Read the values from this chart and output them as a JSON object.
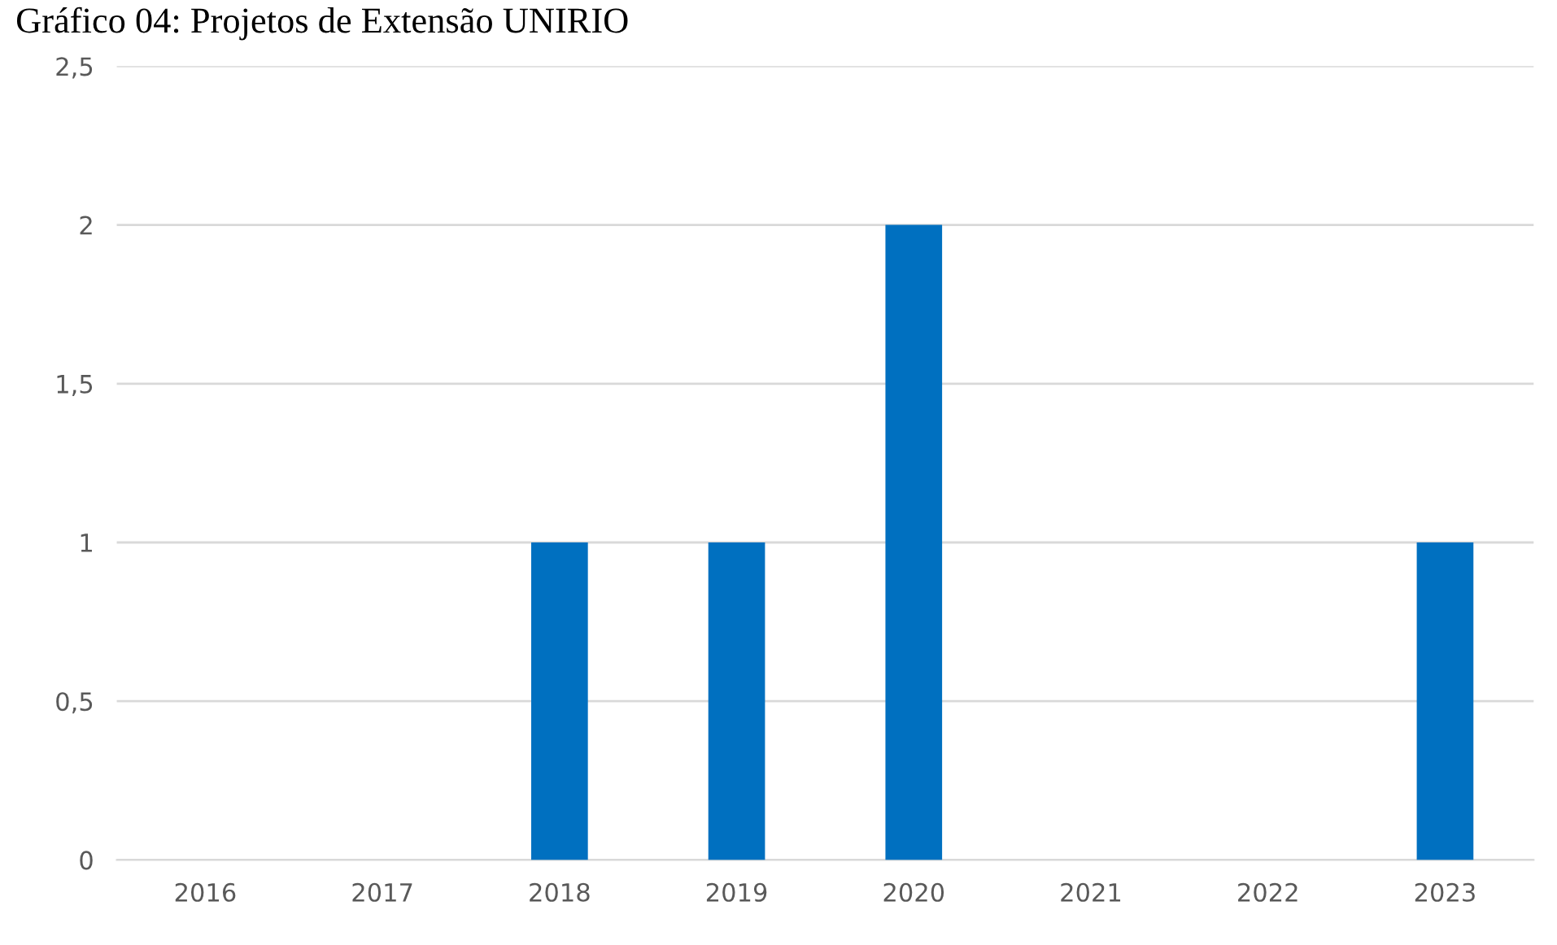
{
  "chart_data": {
    "type": "bar",
    "title": "Gráfico 04: Projetos de Extensão UNIRIO",
    "categories": [
      "2016",
      "2017",
      "2018",
      "2019",
      "2020",
      "2021",
      "2022",
      "2023"
    ],
    "values": [
      0,
      0,
      1,
      1,
      2,
      0,
      0,
      1
    ],
    "color": "#0070c0",
    "ylim": [
      0,
      2.5
    ],
    "yticks": [
      0,
      {
        "value": 0.5,
        "label": "0,5"
      },
      1,
      {
        "value": 1.5,
        "label": "1,5"
      },
      2,
      {
        "value": 2.5,
        "label": "2,5"
      }
    ],
    "grid": "y"
  }
}
